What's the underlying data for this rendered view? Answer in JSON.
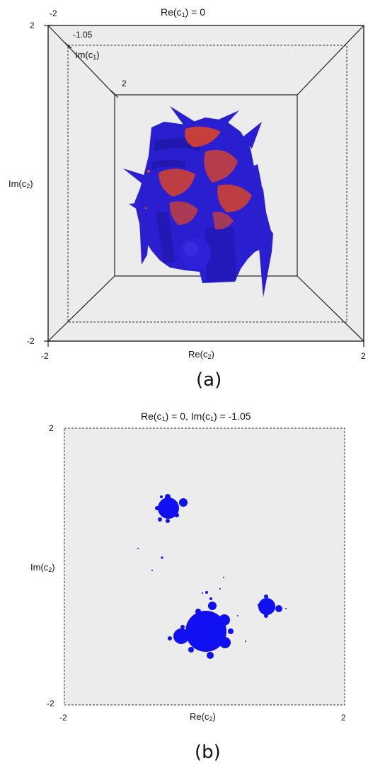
{
  "panel_a": {
    "title_main": "Re(c",
    "title_sub": "1",
    "title_tail": ") = 0",
    "top_left_corner_label": "-2",
    "back_corner_label": "2",
    "mid_corner_label": "-1.05",
    "inner_corner_label": "2",
    "im_c1_main": "Im(c",
    "im_c1_sub": "1",
    "im_c1_tail": ")",
    "im_c2_main": "Im(c",
    "im_c2_sub": "2",
    "im_c2_tail": ")",
    "bottom_left_label": "-2",
    "x_min_label": "-2",
    "x_max_label": "2",
    "re_c2_main": "Re(c",
    "re_c2_sub": "2",
    "re_c2_tail": ")",
    "caption": "(a)",
    "colors": {
      "set_blue": "#2a1fd0",
      "set_red": "#d8432a",
      "background": "#ececec",
      "frame": "#222222"
    }
  },
  "panel_b": {
    "title_main": "Re(c",
    "title_sub": "1",
    "title_mid": ") = 0, Im(c",
    "title_sub2": "1",
    "title_tail": ") = -1.05",
    "y_max_label": "2",
    "y_min_label": "-2",
    "im_c2_main": "Im(c",
    "im_c2_sub": "2",
    "im_c2_tail": ")",
    "x_min_label": "-2",
    "x_max_label": "2",
    "re_c2_main": "Re(c",
    "re_c2_sub": "2",
    "re_c2_tail": ")",
    "caption": "(b)",
    "colors": {
      "set_blue": "#1010f0",
      "background": "#ececec",
      "frame": "#333333"
    }
  }
}
